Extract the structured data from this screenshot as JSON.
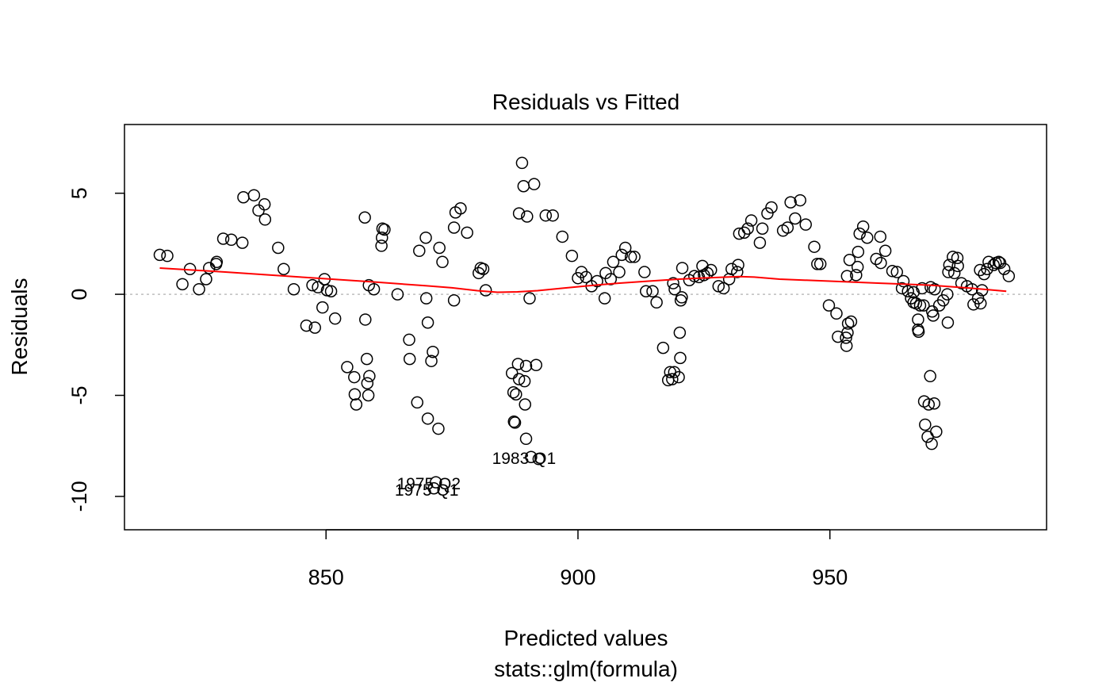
{
  "chart_data": {
    "type": "scatter",
    "title": "Residuals vs Fitted",
    "xlabel": "Predicted values",
    "xsublabel": "stats::glm(formula)",
    "ylabel": "Residuals",
    "xlim": [
      810,
      993
    ],
    "ylim": [
      -11.65,
      8.4
    ],
    "xticks": [
      850,
      900,
      950
    ],
    "yticks": [
      -10,
      -5,
      0,
      5
    ],
    "grid": false,
    "legend": "none",
    "colors": {
      "points": "#000000",
      "smoother": "#FF0000",
      "zero_line": "#BEBEBE",
      "frame": "#000000"
    },
    "points": [
      [
        817.0,
        1.95
      ],
      [
        818.5,
        1.9
      ],
      [
        821.5,
        0.5
      ],
      [
        823.0,
        1.25
      ],
      [
        824.8,
        0.25
      ],
      [
        826.2,
        0.75
      ],
      [
        826.8,
        1.3
      ],
      [
        828.2,
        1.5
      ],
      [
        828.3,
        1.6
      ],
      [
        829.6,
        2.75
      ],
      [
        831.2,
        2.7
      ],
      [
        833.4,
        2.55
      ],
      [
        833.6,
        4.8
      ],
      [
        835.7,
        4.9
      ],
      [
        836.6,
        4.15
      ],
      [
        837.8,
        4.45
      ],
      [
        837.9,
        3.7
      ],
      [
        840.5,
        2.3
      ],
      [
        841.6,
        1.25
      ],
      [
        843.6,
        0.25
      ],
      [
        846.1,
        -1.55
      ],
      [
        847.3,
        0.45
      ],
      [
        847.8,
        -1.65
      ],
      [
        848.4,
        0.35
      ],
      [
        849.3,
        -0.65
      ],
      [
        849.7,
        0.75
      ],
      [
        850.2,
        0.2
      ],
      [
        851.0,
        0.15
      ],
      [
        851.8,
        -1.2
      ],
      [
        854.2,
        -3.6
      ],
      [
        855.6,
        -4.1
      ],
      [
        855.7,
        -4.95
      ],
      [
        856.0,
        -5.45
      ],
      [
        857.7,
        3.8
      ],
      [
        857.8,
        -1.25
      ],
      [
        858.1,
        -3.2
      ],
      [
        858.2,
        -4.4
      ],
      [
        858.4,
        -5.0
      ],
      [
        858.5,
        0.45
      ],
      [
        858.6,
        -4.05
      ],
      [
        859.5,
        0.25
      ],
      [
        861.0,
        2.4
      ],
      [
        861.1,
        2.8
      ],
      [
        861.2,
        3.25
      ],
      [
        861.6,
        3.2
      ],
      [
        864.2,
        0.0
      ],
      [
        866.5,
        -2.25
      ],
      [
        866.6,
        -3.2
      ],
      [
        868.1,
        -5.35
      ],
      [
        868.5,
        2.15
      ],
      [
        869.8,
        2.8
      ],
      [
        869.9,
        -0.2
      ],
      [
        870.2,
        -1.4
      ],
      [
        870.2,
        -6.15
      ],
      [
        870.9,
        -3.3
      ],
      [
        871.2,
        -2.85
      ],
      [
        871.4,
        -9.6
      ],
      [
        871.8,
        -9.3
      ],
      [
        872.3,
        -6.65
      ],
      [
        872.5,
        2.3
      ],
      [
        873.1,
        1.6
      ],
      [
        875.4,
        3.3
      ],
      [
        875.4,
        -0.3
      ],
      [
        875.7,
        4.05
      ],
      [
        876.7,
        4.25
      ],
      [
        878.0,
        3.05
      ],
      [
        880.3,
        1.05
      ],
      [
        880.7,
        1.3
      ],
      [
        881.2,
        1.25
      ],
      [
        881.7,
        0.2
      ],
      [
        886.9,
        -3.9
      ],
      [
        887.2,
        -4.85
      ],
      [
        887.3,
        -6.3
      ],
      [
        887.5,
        -6.35
      ],
      [
        887.7,
        -4.95
      ],
      [
        888.1,
        -3.45
      ],
      [
        888.3,
        -4.2
      ],
      [
        888.3,
        4.0
      ],
      [
        888.9,
        6.5
      ],
      [
        889.2,
        5.35
      ],
      [
        889.4,
        -4.3
      ],
      [
        889.5,
        -5.45
      ],
      [
        889.7,
        -3.55
      ],
      [
        889.7,
        -7.15
      ],
      [
        889.9,
        3.85
      ],
      [
        890.4,
        -0.2
      ],
      [
        890.7,
        -8.05
      ],
      [
        891.3,
        5.45
      ],
      [
        891.7,
        -3.5
      ],
      [
        892.2,
        -8.15
      ],
      [
        893.6,
        3.9
      ],
      [
        895.0,
        3.9
      ],
      [
        896.9,
        2.85
      ],
      [
        898.8,
        1.9
      ],
      [
        900.0,
        0.8
      ],
      [
        900.7,
        1.1
      ],
      [
        901.6,
        0.85
      ],
      [
        902.7,
        0.4
      ],
      [
        903.8,
        0.65
      ],
      [
        905.3,
        -0.2
      ],
      [
        905.5,
        1.05
      ],
      [
        906.5,
        0.75
      ],
      [
        907.0,
        1.6
      ],
      [
        908.2,
        1.1
      ],
      [
        908.7,
        1.95
      ],
      [
        909.4,
        2.3
      ],
      [
        910.5,
        1.85
      ],
      [
        911.2,
        1.85
      ],
      [
        913.2,
        1.1
      ],
      [
        913.5,
        0.15
      ],
      [
        914.8,
        0.15
      ],
      [
        915.6,
        -0.4
      ],
      [
        916.9,
        -2.65
      ],
      [
        917.9,
        -4.25
      ],
      [
        918.3,
        -3.85
      ],
      [
        918.7,
        -4.2
      ],
      [
        918.9,
        0.55
      ],
      [
        919.1,
        -3.85
      ],
      [
        919.2,
        0.25
      ],
      [
        920.0,
        -4.1
      ],
      [
        920.2,
        -1.9
      ],
      [
        920.3,
        -3.15
      ],
      [
        920.4,
        -0.3
      ],
      [
        920.6,
        -0.15
      ],
      [
        920.7,
        1.3
      ],
      [
        922.1,
        0.7
      ],
      [
        923.1,
        0.9
      ],
      [
        924.0,
        0.85
      ],
      [
        924.7,
        1.4
      ],
      [
        925.0,
        0.95
      ],
      [
        925.7,
        1.05
      ],
      [
        926.4,
        1.2
      ],
      [
        927.9,
        0.4
      ],
      [
        928.9,
        0.3
      ],
      [
        930.0,
        0.75
      ],
      [
        930.5,
        1.25
      ],
      [
        931.6,
        1.1
      ],
      [
        931.8,
        1.45
      ],
      [
        932.0,
        3.0
      ],
      [
        933.0,
        3.05
      ],
      [
        933.7,
        3.25
      ],
      [
        934.4,
        3.65
      ],
      [
        936.1,
        2.55
      ],
      [
        936.6,
        3.25
      ],
      [
        937.6,
        4.0
      ],
      [
        938.4,
        4.3
      ],
      [
        940.7,
        3.15
      ],
      [
        941.6,
        3.3
      ],
      [
        942.2,
        4.55
      ],
      [
        943.1,
        3.75
      ],
      [
        944.1,
        4.65
      ],
      [
        945.2,
        3.45
      ],
      [
        946.9,
        2.35
      ],
      [
        947.5,
        1.5
      ],
      [
        948.1,
        1.5
      ],
      [
        949.8,
        -0.55
      ],
      [
        951.3,
        -0.95
      ],
      [
        951.6,
        -2.1
      ],
      [
        953.2,
        -2.15
      ],
      [
        953.3,
        -2.55
      ],
      [
        953.4,
        0.9
      ],
      [
        953.5,
        -1.9
      ],
      [
        953.6,
        -1.45
      ],
      [
        953.9,
        1.7
      ],
      [
        954.2,
        -1.35
      ],
      [
        955.2,
        0.95
      ],
      [
        955.5,
        1.35
      ],
      [
        955.6,
        2.1
      ],
      [
        955.9,
        3.0
      ],
      [
        956.6,
        3.35
      ],
      [
        957.4,
        2.8
      ],
      [
        959.2,
        1.75
      ],
      [
        960.0,
        2.85
      ],
      [
        960.1,
        1.55
      ],
      [
        961.0,
        2.15
      ],
      [
        962.4,
        1.15
      ],
      [
        963.3,
        1.1
      ],
      [
        964.3,
        0.3
      ],
      [
        964.6,
        0.65
      ],
      [
        965.5,
        0.15
      ],
      [
        966.1,
        -0.2
      ],
      [
        966.6,
        0.1
      ],
      [
        966.6,
        -0.4
      ],
      [
        967.1,
        -0.45
      ],
      [
        967.5,
        -1.25
      ],
      [
        967.5,
        -1.75
      ],
      [
        967.6,
        -1.85
      ],
      [
        967.9,
        -0.55
      ],
      [
        968.3,
        0.3
      ],
      [
        968.6,
        -0.55
      ],
      [
        968.7,
        -5.3
      ],
      [
        968.9,
        -6.45
      ],
      [
        969.4,
        -7.05
      ],
      [
        969.6,
        -5.45
      ],
      [
        969.9,
        -4.05
      ],
      [
        970.0,
        0.35
      ],
      [
        970.2,
        -7.4
      ],
      [
        970.3,
        -0.85
      ],
      [
        970.5,
        -1.05
      ],
      [
        970.7,
        -5.4
      ],
      [
        970.8,
        0.25
      ],
      [
        971.1,
        -6.8
      ],
      [
        971.7,
        -0.55
      ],
      [
        972.5,
        -0.3
      ],
      [
        973.3,
        0.0
      ],
      [
        973.4,
        -1.4
      ],
      [
        973.5,
        1.1
      ],
      [
        973.7,
        1.45
      ],
      [
        974.4,
        1.85
      ],
      [
        974.7,
        1.05
      ],
      [
        975.3,
        1.8
      ],
      [
        975.4,
        1.4
      ],
      [
        976.1,
        0.55
      ],
      [
        977.2,
        0.4
      ],
      [
        978.2,
        0.25
      ],
      [
        978.5,
        -0.5
      ],
      [
        979.4,
        -0.2
      ],
      [
        979.8,
        1.2
      ],
      [
        979.9,
        -0.45
      ],
      [
        980.2,
        0.2
      ],
      [
        980.6,
        1.0
      ],
      [
        981.2,
        1.25
      ],
      [
        981.5,
        1.6
      ],
      [
        982.5,
        1.45
      ],
      [
        982.9,
        1.55
      ],
      [
        983.5,
        1.6
      ],
      [
        983.8,
        1.55
      ],
      [
        984.6,
        1.25
      ],
      [
        985.5,
        0.9
      ]
    ],
    "smoother": [
      [
        817.0,
        1.3
      ],
      [
        830.0,
        1.1
      ],
      [
        845.0,
        0.85
      ],
      [
        860.0,
        0.6
      ],
      [
        870.0,
        0.42
      ],
      [
        875.0,
        0.32
      ],
      [
        880.0,
        0.18
      ],
      [
        884.0,
        0.1
      ],
      [
        888.0,
        0.12
      ],
      [
        892.0,
        0.18
      ],
      [
        897.0,
        0.3
      ],
      [
        902.0,
        0.42
      ],
      [
        908.0,
        0.55
      ],
      [
        914.0,
        0.65
      ],
      [
        920.0,
        0.75
      ],
      [
        926.0,
        0.82
      ],
      [
        932.0,
        0.88
      ],
      [
        935.0,
        0.85
      ],
      [
        940.0,
        0.75
      ],
      [
        950.0,
        0.65
      ],
      [
        960.0,
        0.55
      ],
      [
        970.0,
        0.45
      ],
      [
        978.0,
        0.3
      ],
      [
        985.0,
        0.15
      ]
    ],
    "annotations": [
      {
        "text": "1983 Q1",
        "x": 890.7,
        "y": -8.05
      },
      {
        "text": "1975 Q2",
        "x": 871.8,
        "y": -9.3
      },
      {
        "text": "1975 Q1",
        "x": 871.4,
        "y": -9.6
      }
    ]
  }
}
